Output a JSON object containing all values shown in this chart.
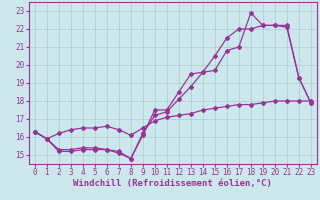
{
  "xlabel": "Windchill (Refroidissement éolien,°C)",
  "xlim": [
    -0.5,
    23.5
  ],
  "ylim": [
    14.5,
    23.5
  ],
  "xticks": [
    0,
    1,
    2,
    3,
    4,
    5,
    6,
    7,
    8,
    9,
    10,
    11,
    12,
    13,
    14,
    15,
    16,
    17,
    18,
    19,
    20,
    21,
    22,
    23
  ],
  "yticks": [
    15,
    16,
    17,
    18,
    19,
    20,
    21,
    22,
    23
  ],
  "bg_color": "#cce8ec",
  "line_color": "#993399",
  "grid_color": "#aacccc",
  "line1_x": [
    0,
    1,
    2,
    3,
    4,
    5,
    6,
    7,
    8,
    9,
    10,
    11,
    12,
    13,
    14,
    15,
    16,
    17,
    18,
    19,
    20,
    21,
    22,
    23
  ],
  "line1_y": [
    16.3,
    15.9,
    15.2,
    15.2,
    15.3,
    15.3,
    15.3,
    15.1,
    14.8,
    16.1,
    17.5,
    17.5,
    18.5,
    19.5,
    19.6,
    19.7,
    20.8,
    21.0,
    22.9,
    22.2,
    22.2,
    22.1,
    19.3,
    17.9
  ],
  "line2_x": [
    0,
    1,
    2,
    3,
    4,
    5,
    6,
    7,
    8,
    9,
    10,
    11,
    12,
    13,
    14,
    15,
    16,
    17,
    18,
    19,
    20,
    21,
    22,
    23
  ],
  "line2_y": [
    16.3,
    15.9,
    15.3,
    15.3,
    15.4,
    15.4,
    15.3,
    15.2,
    14.8,
    16.2,
    17.2,
    17.4,
    18.1,
    18.8,
    19.6,
    20.5,
    21.5,
    22.0,
    22.0,
    22.2,
    22.2,
    22.2,
    19.3,
    17.9
  ],
  "line3_x": [
    0,
    1,
    2,
    3,
    4,
    5,
    6,
    7,
    8,
    9,
    10,
    11,
    12,
    13,
    14,
    15,
    16,
    17,
    18,
    19,
    20,
    21,
    22,
    23
  ],
  "line3_y": [
    16.3,
    15.9,
    16.2,
    16.4,
    16.5,
    16.5,
    16.6,
    16.4,
    16.1,
    16.5,
    16.9,
    17.1,
    17.2,
    17.3,
    17.5,
    17.6,
    17.7,
    17.8,
    17.8,
    17.9,
    18.0,
    18.0,
    18.0,
    18.0
  ],
  "marker": "D",
  "markersize": 2.0,
  "linewidth": 0.9,
  "tick_fontsize": 5.5,
  "xlabel_fontsize": 6.5
}
